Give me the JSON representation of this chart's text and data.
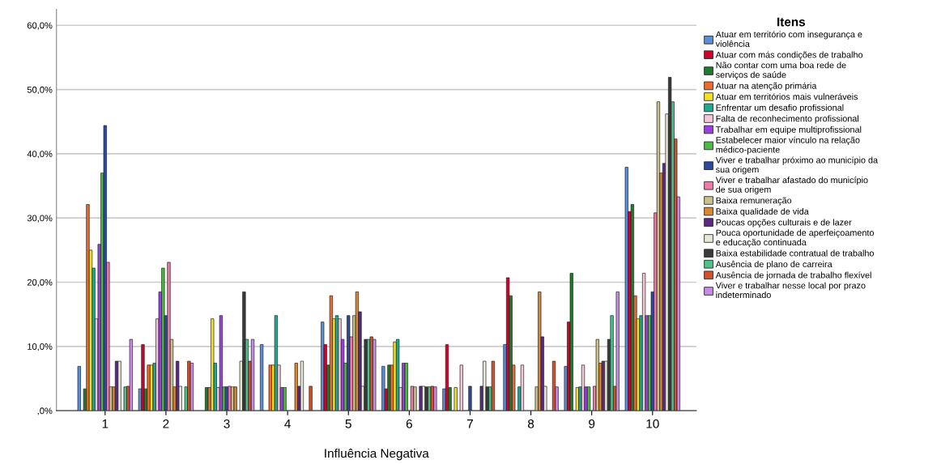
{
  "chart_data": {
    "type": "bar",
    "xlabel": "Influência Negativa",
    "legend_title": "Itens",
    "categories": [
      "1",
      "2",
      "3",
      "4",
      "5",
      "6",
      "7",
      "8",
      "9",
      "10"
    ],
    "ylim": [
      0,
      62.5
    ],
    "yticks": [
      {
        "value": 0,
        "label": ",0%"
      },
      {
        "value": 10,
        "label": "10,0%"
      },
      {
        "value": 20,
        "label": "20,0%"
      },
      {
        "value": 30,
        "label": "30,0%"
      },
      {
        "value": 40,
        "label": "40,0%"
      },
      {
        "value": 50,
        "label": "50,0%"
      },
      {
        "value": 60,
        "label": "60,0%"
      }
    ],
    "grid": "y",
    "legend": "right",
    "series": [
      {
        "name": "Atuar em território com insegurança e\nviolência",
        "color": "#5a8ed8",
        "values": [
          6.9,
          3.4,
          null,
          10.3,
          13.8,
          6.9,
          3.4,
          10.3,
          6.9,
          37.9
        ]
      },
      {
        "name": "Atuar com más condições de trabalho",
        "color": "#d4002b",
        "values": [
          null,
          10.3,
          null,
          null,
          10.3,
          3.4,
          10.3,
          20.7,
          13.8,
          31.0
        ]
      },
      {
        "name": "Não contar com uma boa rede de\nserviços de saúde",
        "color": "#1f7a2d",
        "values": [
          3.4,
          3.4,
          3.6,
          null,
          7.1,
          7.1,
          3.6,
          17.9,
          21.4,
          32.1
        ]
      },
      {
        "name": "Atuar na atenção primária",
        "color": "#f06a2a",
        "values": [
          32.1,
          7.1,
          3.6,
          7.1,
          17.9,
          7.1,
          null,
          7.1,
          null,
          17.9
        ]
      },
      {
        "name": "Atuar em territórios mais vulneráveis",
        "color": "#f5e020",
        "values": [
          25.0,
          7.1,
          14.3,
          7.1,
          14.3,
          10.7,
          3.6,
          null,
          3.6,
          14.3
        ]
      },
      {
        "name": "Enfrentar um desafio profissional",
        "color": "#1fa894",
        "values": [
          22.2,
          7.4,
          7.4,
          14.8,
          14.8,
          11.1,
          null,
          3.7,
          3.7,
          14.8
        ]
      },
      {
        "name": "Falta de reconhecimento profissional",
        "color": "#f3c6d8",
        "values": [
          14.3,
          14.3,
          3.6,
          7.1,
          14.3,
          3.6,
          7.1,
          7.1,
          7.1,
          21.4
        ]
      },
      {
        "name": "Trabalhar em equipe multiprofissional",
        "color": "#9b3fe0",
        "values": [
          25.9,
          18.5,
          14.8,
          3.6,
          11.1,
          7.4,
          null,
          null,
          3.7,
          14.8
        ]
      },
      {
        "name": "Estabelecer maior vínculo na relação\nmédico-paciente",
        "color": "#4db843",
        "values": [
          37.0,
          22.2,
          3.7,
          3.6,
          7.4,
          7.4,
          null,
          null,
          3.7,
          14.8
        ]
      },
      {
        "name": "Viver e trabalhar próximo ao município da\nsua origem",
        "color": "#2b4a9c",
        "values": [
          44.4,
          14.8,
          3.7,
          null,
          14.8,
          null,
          3.8,
          null,
          null,
          18.5
        ]
      },
      {
        "name": "Viver e trabalhar afastado do município\nde sua origem",
        "color": "#f07aa8",
        "values": [
          23.1,
          23.1,
          3.8,
          null,
          11.5,
          3.8,
          null,
          null,
          3.8,
          30.8
        ]
      },
      {
        "name": "Baixa remuneração",
        "color": "#c9c08a",
        "values": [
          3.7,
          11.1,
          3.7,
          null,
          14.8,
          3.7,
          null,
          3.7,
          11.1,
          48.1
        ]
      },
      {
        "name": "Baixa qualidade de vida",
        "color": "#d9862e",
        "values": [
          3.7,
          3.7,
          3.7,
          7.4,
          18.5,
          null,
          null,
          18.5,
          7.4,
          37.0
        ]
      },
      {
        "name": "Poucas opções culturais e de lazer",
        "color": "#5a2a82",
        "values": [
          7.7,
          7.7,
          null,
          3.8,
          15.4,
          3.8,
          3.8,
          11.5,
          7.7,
          38.5
        ]
      },
      {
        "name": "Pouca oportunidade de aperfeiçoamento\ne educação continuada",
        "color": "#e8e8d8",
        "values": [
          7.7,
          3.8,
          7.7,
          7.7,
          3.8,
          3.8,
          7.7,
          3.8,
          7.7,
          46.2
        ]
      },
      {
        "name": "Baixa estabilidade contratual de trabalho",
        "color": "#3a3a3a",
        "values": [
          null,
          null,
          18.5,
          null,
          11.1,
          3.7,
          3.7,
          null,
          11.1,
          51.9
        ]
      },
      {
        "name": "Ausência de plano de carreira",
        "color": "#4cc28a",
        "values": [
          3.7,
          3.7,
          11.1,
          null,
          11.1,
          3.7,
          3.7,
          null,
          14.8,
          48.1
        ]
      },
      {
        "name": "Ausência de jornada de trabalho flexível",
        "color": "#d2502a",
        "values": [
          3.8,
          7.7,
          7.7,
          3.8,
          11.5,
          3.8,
          7.7,
          7.7,
          3.8,
          42.3
        ]
      },
      {
        "name": "Viver e trabalhar nesse local por prazo\nindeterminado",
        "color": "#c98ae8",
        "values": [
          11.1,
          7.4,
          11.1,
          null,
          11.1,
          3.7,
          null,
          3.7,
          18.5,
          33.3
        ]
      }
    ]
  }
}
